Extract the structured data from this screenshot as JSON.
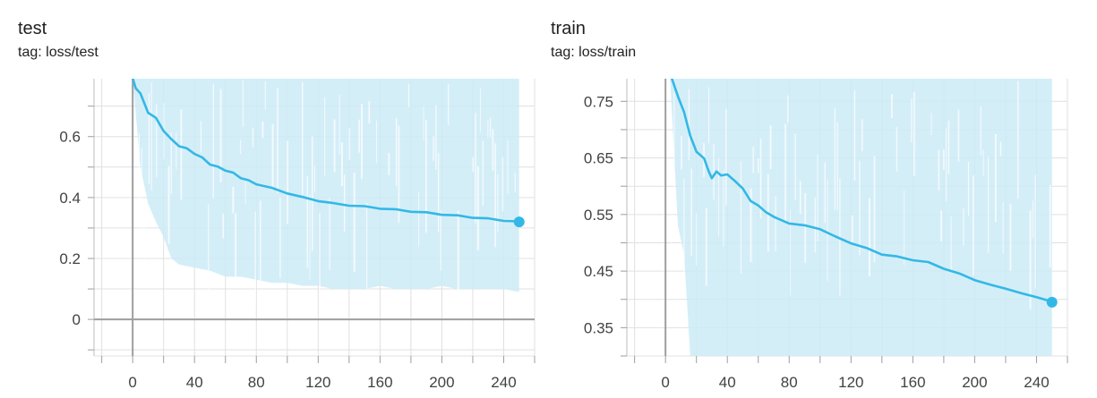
{
  "chart_data": [
    {
      "type": "line",
      "title": "test",
      "tag": "tag: loss/test",
      "xlabel": "",
      "ylabel": "",
      "xlim": [
        -25,
        260
      ],
      "ylim": [
        -0.12,
        0.79
      ],
      "x_ticks": [
        0,
        40,
        80,
        120,
        160,
        200,
        240
      ],
      "x_tick_labels": [
        "0",
        "40",
        "80",
        "120",
        "160",
        "200",
        "240"
      ],
      "y_ticks": [
        0,
        0.2,
        0.4,
        0.6
      ],
      "y_tick_labels": [
        "0",
        "0.2",
        "0.4",
        "0.6"
      ],
      "grid": true,
      "colors": {
        "smoothed": "#33b8e6",
        "raw_band": "#cdebf7",
        "axis_zero": "#9e9e9e",
        "grid": "#e0e0e0"
      },
      "series": [
        {
          "name": "smoothed",
          "x": [
            0,
            2,
            5,
            10,
            15,
            20,
            25,
            30,
            35,
            40,
            45,
            50,
            55,
            60,
            65,
            70,
            75,
            80,
            90,
            100,
            110,
            120,
            130,
            140,
            150,
            160,
            170,
            180,
            190,
            200,
            210,
            220,
            230,
            240,
            250
          ],
          "y": [
            0.79,
            0.76,
            0.74,
            0.68,
            0.66,
            0.62,
            0.59,
            0.57,
            0.56,
            0.545,
            0.53,
            0.51,
            0.5,
            0.49,
            0.48,
            0.465,
            0.455,
            0.445,
            0.43,
            0.415,
            0.4,
            0.39,
            0.38,
            0.375,
            0.37,
            0.365,
            0.36,
            0.355,
            0.35,
            0.345,
            0.34,
            0.335,
            0.33,
            0.325,
            0.32
          ]
        },
        {
          "name": "raw",
          "x": [
            0,
            5,
            10,
            15,
            20,
            25,
            30,
            40,
            50,
            60,
            70,
            80,
            90,
            100,
            110,
            120,
            130,
            140,
            150,
            160,
            170,
            180,
            190,
            200,
            210,
            220,
            230,
            240,
            250
          ],
          "y_low": [
            0.79,
            0.5,
            0.38,
            0.32,
            0.27,
            0.2,
            0.18,
            0.17,
            0.16,
            0.14,
            0.14,
            0.13,
            0.12,
            0.12,
            0.11,
            0.11,
            0.1,
            0.1,
            0.1,
            0.11,
            0.1,
            0.1,
            0.1,
            0.11,
            0.1,
            0.1,
            0.1,
            0.1,
            0.09
          ],
          "y_high": [
            0.79,
            0.79,
            0.79,
            0.79,
            0.79,
            0.79,
            0.79,
            0.79,
            0.79,
            0.79,
            0.79,
            0.79,
            0.79,
            0.79,
            0.79,
            0.79,
            0.79,
            0.79,
            0.79,
            0.79,
            0.79,
            0.79,
            0.79,
            0.79,
            0.79,
            0.79,
            0.79,
            0.79,
            0.79
          ]
        }
      ],
      "last_point": {
        "x": 250,
        "y": 0.32
      }
    },
    {
      "type": "line",
      "title": "train",
      "tag": "tag: loss/train",
      "xlabel": "",
      "ylabel": "",
      "xlim": [
        -25,
        260
      ],
      "ylim": [
        0.3,
        0.79
      ],
      "x_ticks": [
        0,
        40,
        80,
        120,
        160,
        200,
        240
      ],
      "x_tick_labels": [
        "0",
        "40",
        "80",
        "120",
        "160",
        "200",
        "240"
      ],
      "y_ticks": [
        0.35,
        0.45,
        0.55,
        0.65,
        0.75
      ],
      "y_tick_labels": [
        "0.35",
        "0.45",
        "0.55",
        "0.65",
        "0.75"
      ],
      "grid": true,
      "colors": {
        "smoothed": "#33b8e6",
        "raw_band": "#cdebf7",
        "axis_zero": "#9e9e9e",
        "grid": "#e0e0e0"
      },
      "series": [
        {
          "name": "smoothed",
          "x": [
            4,
            8,
            12,
            16,
            20,
            25,
            28,
            30,
            33,
            36,
            40,
            45,
            50,
            55,
            60,
            65,
            70,
            80,
            90,
            100,
            110,
            120,
            130,
            140,
            150,
            160,
            170,
            180,
            190,
            200,
            210,
            220,
            230,
            240,
            250
          ],
          "y": [
            0.79,
            0.76,
            0.73,
            0.69,
            0.66,
            0.65,
            0.625,
            0.615,
            0.625,
            0.62,
            0.62,
            0.61,
            0.595,
            0.575,
            0.565,
            0.555,
            0.545,
            0.535,
            0.53,
            0.525,
            0.51,
            0.5,
            0.49,
            0.48,
            0.475,
            0.47,
            0.465,
            0.455,
            0.445,
            0.435,
            0.425,
            0.42,
            0.41,
            0.405,
            0.395
          ]
        },
        {
          "name": "raw",
          "x": [
            3,
            8,
            12,
            16,
            20,
            30,
            40,
            60,
            80,
            100,
            120,
            140,
            160,
            180,
            200,
            220,
            240,
            250
          ],
          "y_low": [
            0.79,
            0.53,
            0.48,
            0.3,
            0.3,
            0.3,
            0.3,
            0.3,
            0.3,
            0.3,
            0.3,
            0.3,
            0.3,
            0.3,
            0.3,
            0.3,
            0.3,
            0.3
          ],
          "y_high": [
            0.79,
            0.79,
            0.79,
            0.79,
            0.79,
            0.79,
            0.79,
            0.79,
            0.79,
            0.79,
            0.79,
            0.79,
            0.79,
            0.79,
            0.79,
            0.79,
            0.79,
            0.79
          ]
        }
      ],
      "last_point": {
        "x": 250,
        "y": 0.395
      }
    }
  ]
}
